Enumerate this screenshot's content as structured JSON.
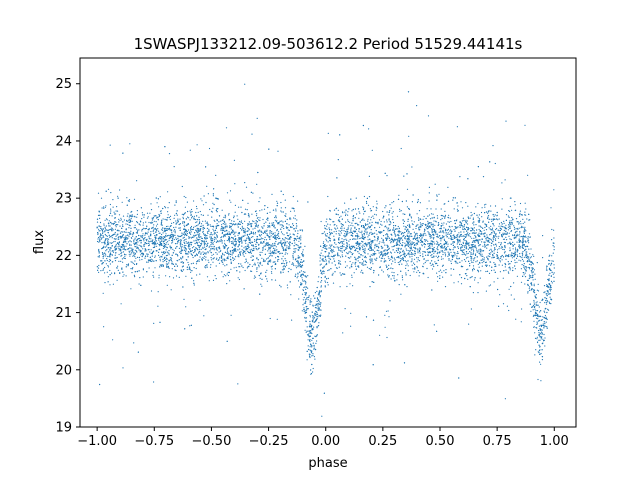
{
  "chart_data": {
    "type": "scatter",
    "title": "1SWASPJ133212.09-503612.2 Period 51529.44141s",
    "xlabel": "phase",
    "ylabel": "flux",
    "xlim": [
      -1.075,
      1.095
    ],
    "ylim": [
      19.0,
      25.45
    ],
    "xticks": [
      -1.0,
      -0.75,
      -0.5,
      -0.25,
      0.0,
      0.25,
      0.5,
      0.75,
      1.0
    ],
    "xtick_labels": [
      "−1.00",
      "−0.75",
      "−0.50",
      "−0.25",
      "0.00",
      "0.25",
      "0.50",
      "0.75",
      "1.00"
    ],
    "yticks": [
      19,
      20,
      21,
      22,
      23,
      24,
      25
    ],
    "ytick_labels": [
      "19",
      "20",
      "21",
      "22",
      "23",
      "24",
      "25"
    ],
    "grid": false,
    "legend": "none",
    "marker_color": "#1f77b4",
    "series": [
      {
        "baseline_flux": 22.25,
        "eclipses": [
          {
            "phase_center": -0.06,
            "min_flux": 20.6
          },
          {
            "phase_center": 0.94,
            "min_flux": 20.6
          }
        ]
      }
    ]
  }
}
